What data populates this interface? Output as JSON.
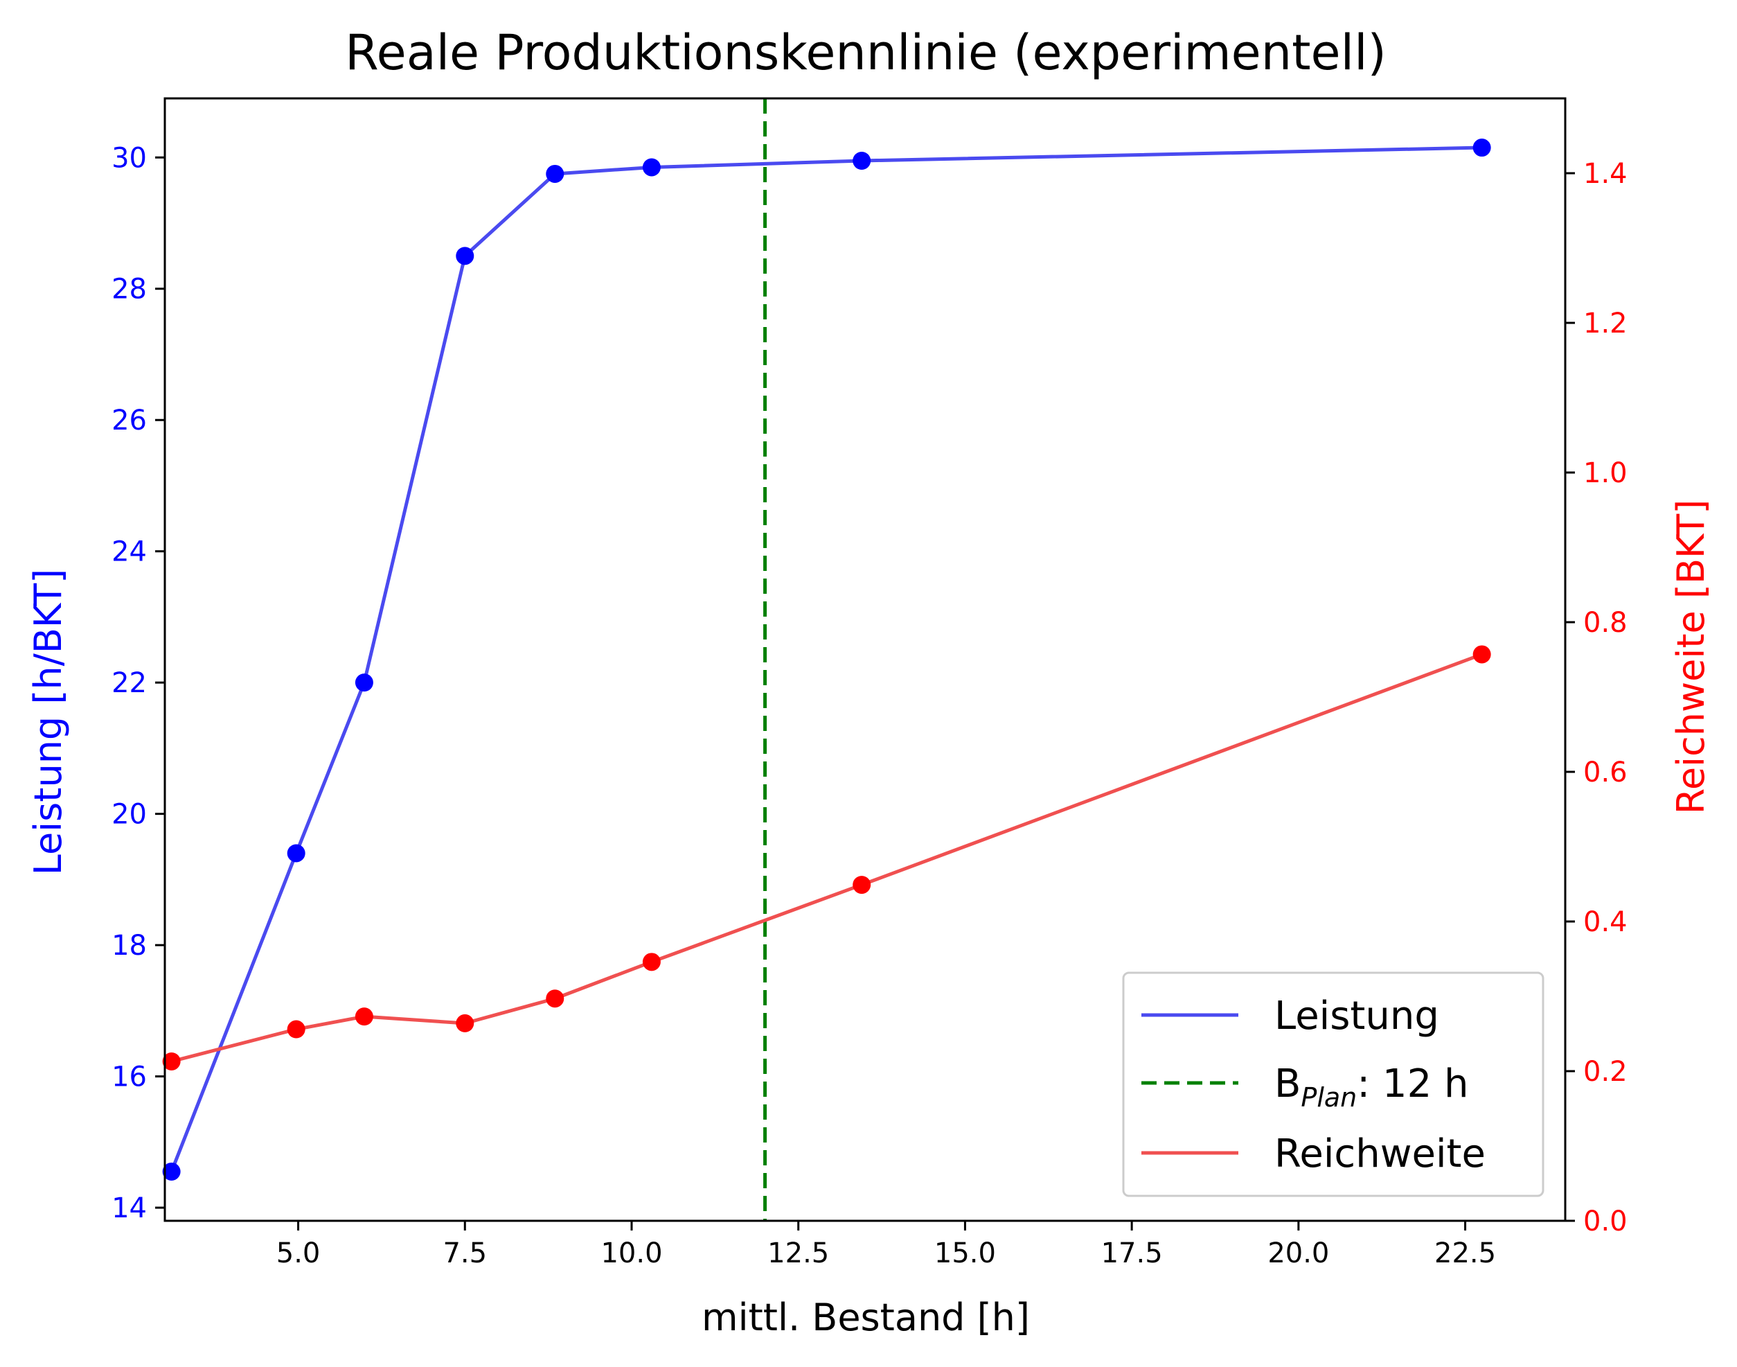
{
  "chart_data": {
    "type": "line",
    "title": "Reale Produktionskennlinie (experimentell)",
    "xlabel": "mittl. Bestand [h]",
    "ylabel_left": "Leistung [h/BKT]",
    "ylabel_right": "Reichweite [BKT]",
    "xlim": [
      3.0,
      24.0
    ],
    "ylim_left": [
      13.8,
      30.9
    ],
    "ylim_right": [
      0.0,
      1.5
    ],
    "x_ticks": [
      5.0,
      7.5,
      10.0,
      12.5,
      15.0,
      17.5,
      20.0,
      22.5
    ],
    "x_tick_labels": [
      "5.0",
      "7.5",
      "10.0",
      "12.5",
      "15.0",
      "17.5",
      "20.0",
      "22.5"
    ],
    "y_left_ticks": [
      14,
      16,
      18,
      20,
      22,
      24,
      26,
      28,
      30
    ],
    "y_left_tick_labels": [
      "14",
      "16",
      "18",
      "20",
      "22",
      "24",
      "26",
      "28",
      "30"
    ],
    "y_right_ticks": [
      0.0,
      0.2,
      0.4,
      0.6,
      0.8,
      1.0,
      1.2,
      1.4
    ],
    "y_right_tick_labels": [
      "0.0",
      "0.2",
      "0.4",
      "0.6",
      "0.8",
      "1.0",
      "1.2",
      "1.4"
    ],
    "series": [
      {
        "name": "Leistung",
        "axis": "left",
        "color": "#4a4af0",
        "marker_color": "#0000ff",
        "x": [
          3.1,
          4.97,
          5.99,
          7.5,
          8.85,
          10.3,
          13.45,
          22.75
        ],
        "y": [
          14.55,
          19.4,
          22.0,
          28.5,
          29.75,
          29.85,
          29.95,
          30.15
        ]
      },
      {
        "name": "Reichweite",
        "axis": "right",
        "color": "#f05050",
        "marker_color": "#ff0000",
        "x": [
          3.1,
          4.97,
          5.99,
          7.5,
          8.85,
          10.3,
          13.45,
          22.75
        ],
        "y": [
          0.213,
          0.256,
          0.273,
          0.264,
          0.297,
          0.346,
          0.449,
          0.757
        ]
      }
    ],
    "vline": {
      "x": 12.0,
      "color": "#008000",
      "legend_main": "B",
      "legend_sub": "Plan",
      "legend_rest": ": 12 h"
    },
    "legend": {
      "placement": "lower-right",
      "entries": [
        "Leistung",
        "B_Plan: 12 h",
        "Reichweite"
      ]
    },
    "colors": {
      "left_axis": "#0000ff",
      "right_axis": "#ff0000",
      "default_text": "#000000"
    }
  }
}
